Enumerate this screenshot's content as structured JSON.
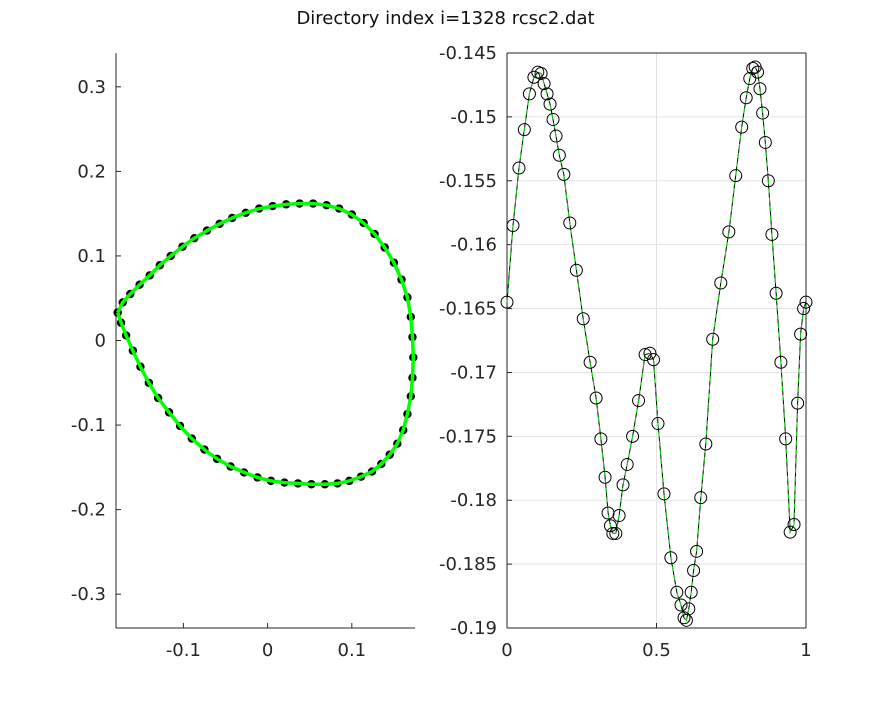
{
  "figure": {
    "title": "Directory index i=1328 rcsc2.dat"
  },
  "chart_data": [
    {
      "type": "line",
      "panel": "left",
      "xlim": [
        -0.18,
        0.175
      ],
      "ylim": [
        -0.34,
        0.34
      ],
      "grid": false,
      "xticks": [
        -0.1,
        0,
        0.1
      ],
      "xticklabels": [
        "-0.1",
        "0",
        "0.1"
      ],
      "yticks": [
        0.3,
        0.2,
        0.1,
        0,
        -0.1,
        -0.2,
        -0.3
      ],
      "yticklabels": [
        "0.3",
        "0.2",
        "0.1",
        "0",
        "-0.1",
        "-0.2",
        "-0.3"
      ],
      "series": [
        {
          "style": "closed green curve over black filled markers",
          "color": "#00ff00",
          "marker_color": "#000000",
          "x": [
            -0.178,
            -0.172,
            -0.163,
            -0.152,
            -0.14,
            -0.128,
            -0.115,
            -0.101,
            -0.087,
            -0.072,
            -0.057,
            -0.042,
            -0.026,
            -0.01,
            0.006,
            0.022,
            0.038,
            0.054,
            0.07,
            0.085,
            0.1,
            0.114,
            0.127,
            0.139,
            0.15,
            0.159,
            0.166,
            0.17,
            0.172,
            0.173,
            0.172,
            0.17,
            0.166,
            0.161,
            0.154,
            0.145,
            0.135,
            0.124,
            0.111,
            0.097,
            0.083,
            0.068,
            0.052,
            0.036,
            0.02,
            0.004,
            -0.012,
            -0.028,
            -0.044,
            -0.06,
            -0.075,
            -0.09,
            -0.104,
            -0.117,
            -0.13,
            -0.141,
            -0.151,
            -0.16,
            -0.168,
            -0.174,
            -0.178
          ],
          "y": [
            0.033,
            0.045,
            0.055,
            0.066,
            0.077,
            0.089,
            0.1,
            0.111,
            0.121,
            0.13,
            0.138,
            0.145,
            0.151,
            0.156,
            0.159,
            0.161,
            0.162,
            0.162,
            0.16,
            0.156,
            0.149,
            0.139,
            0.126,
            0.11,
            0.092,
            0.072,
            0.051,
            0.028,
            0.004,
            -0.02,
            -0.044,
            -0.066,
            -0.087,
            -0.106,
            -0.122,
            -0.135,
            -0.146,
            -0.155,
            -0.161,
            -0.166,
            -0.169,
            -0.17,
            -0.17,
            -0.169,
            -0.168,
            -0.166,
            -0.162,
            -0.156,
            -0.149,
            -0.14,
            -0.129,
            -0.116,
            -0.101,
            -0.085,
            -0.068,
            -0.05,
            -0.031,
            -0.012,
            0.006,
            0.021,
            0.033
          ]
        }
      ]
    },
    {
      "type": "line",
      "panel": "right",
      "xlim": [
        0,
        1
      ],
      "ylim": [
        -0.19,
        -0.145
      ],
      "grid": true,
      "xticks": [
        0,
        0.5,
        1
      ],
      "xticklabels": [
        "0",
        "0.5",
        "1"
      ],
      "yticks": [
        -0.145,
        -0.15,
        -0.155,
        -0.16,
        -0.165,
        -0.17,
        -0.175,
        -0.18,
        -0.185,
        -0.19
      ],
      "yticklabels": [
        "-0.145",
        "-0.15",
        "-0.155",
        "-0.16",
        "-0.165",
        "-0.17",
        "-0.175",
        "-0.18",
        "-0.185",
        "-0.19"
      ],
      "series": [
        {
          "style": "black line with open circle markers, green dashed overlay",
          "color": "#000000",
          "overlay_color": "#00dd00",
          "x": [
            0.0,
            0.02,
            0.04,
            0.058,
            0.075,
            0.09,
            0.103,
            0.114,
            0.124,
            0.134,
            0.144,
            0.154,
            0.164,
            0.175,
            0.19,
            0.21,
            0.232,
            0.255,
            0.278,
            0.298,
            0.314,
            0.328,
            0.338,
            0.346,
            0.354,
            0.364,
            0.375,
            0.388,
            0.402,
            0.42,
            0.44,
            0.462,
            0.478,
            0.49,
            0.505,
            0.525,
            0.548,
            0.568,
            0.582,
            0.592,
            0.6,
            0.608,
            0.616,
            0.624,
            0.634,
            0.648,
            0.665,
            0.688,
            0.715,
            0.742,
            0.765,
            0.785,
            0.8,
            0.812,
            0.822,
            0.83,
            0.838,
            0.846,
            0.855,
            0.864,
            0.874,
            0.886,
            0.9,
            0.916,
            0.932,
            0.947,
            0.96,
            0.972,
            0.982,
            0.992,
            1.0
          ],
          "y": [
            -0.1645,
            -0.1585,
            -0.154,
            -0.151,
            -0.1482,
            -0.1469,
            -0.1465,
            -0.1466,
            -0.1474,
            -0.1482,
            -0.149,
            -0.1502,
            -0.1515,
            -0.153,
            -0.1545,
            -0.1583,
            -0.162,
            -0.1658,
            -0.1692,
            -0.172,
            -0.1752,
            -0.1782,
            -0.181,
            -0.182,
            -0.1826,
            -0.1826,
            -0.1812,
            -0.1788,
            -0.1772,
            -0.175,
            -0.1722,
            -0.1686,
            -0.1685,
            -0.169,
            -0.174,
            -0.1795,
            -0.1845,
            -0.1872,
            -0.1882,
            -0.1892,
            -0.1894,
            -0.1885,
            -0.1872,
            -0.1855,
            -0.184,
            -0.1798,
            -0.1756,
            -0.1674,
            -0.163,
            -0.159,
            -0.1546,
            -0.1508,
            -0.1485,
            -0.147,
            -0.1462,
            -0.1461,
            -0.1465,
            -0.1478,
            -0.1497,
            -0.152,
            -0.155,
            -0.1592,
            -0.1638,
            -0.1692,
            -0.1752,
            -0.1825,
            -0.1819,
            -0.1724,
            -0.167,
            -0.165,
            -0.1645
          ]
        }
      ]
    }
  ]
}
